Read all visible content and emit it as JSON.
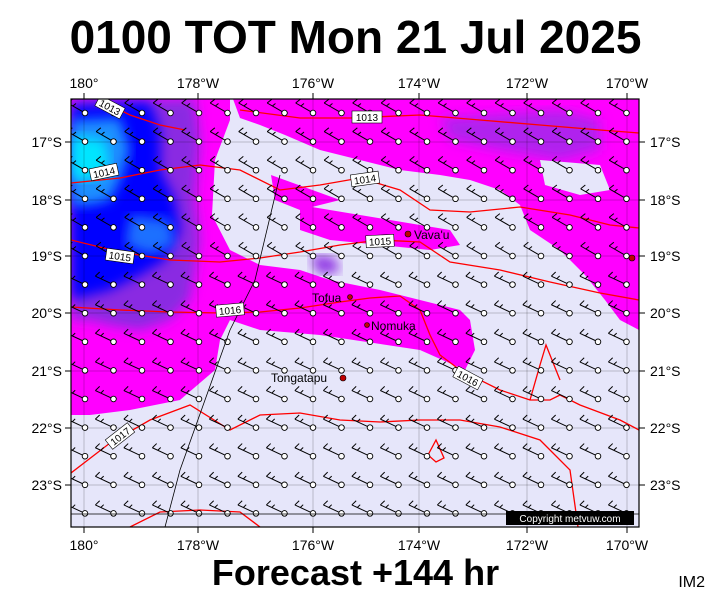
{
  "title": "0100 TOT Mon 21 Jul 2025",
  "subtitle": "Forecast +144 hr",
  "corner_tag": "IM2",
  "copyright": "Copyright metvuw.com",
  "lon_labels": [
    "180°",
    "178°W",
    "176°W",
    "174°W",
    "172°W",
    "170°W"
  ],
  "lat_labels": [
    "17°S",
    "18°S",
    "19°S",
    "20°S",
    "21°S",
    "22°S",
    "23°S"
  ],
  "places": [
    {
      "name": "Vava'u",
      "lon": -174.0,
      "lat": -18.65
    },
    {
      "name": "Tofua",
      "lon": -175.05,
      "lat": -19.75
    },
    {
      "name": "Nomuka",
      "lon": -174.8,
      "lat": -20.25
    },
    {
      "name": "Tongatapu",
      "lon": -175.2,
      "lat": -21.15
    }
  ],
  "isobar_labels": [
    "1013",
    "1013",
    "1014",
    "1014",
    "1015",
    "1015",
    "1016",
    "1016",
    "1017"
  ],
  "colors": {
    "background": "#e6e6fa",
    "magenta": "#ff00ff",
    "violet": "#8a2be2",
    "blue": "#0000ff",
    "cyan": "#00bfff",
    "isobar": "#ff0000"
  }
}
